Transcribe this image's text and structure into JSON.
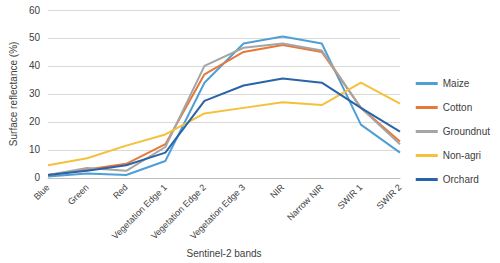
{
  "chart_data": {
    "type": "line",
    "x_label": "Sentinel-2 bands",
    "y_label": "Surface reflectance (%)",
    "categories": [
      "Blue",
      "Green",
      "Red",
      "Vegetation Edge 1",
      "Vegetation Edge 2",
      "Vegetation Edge 3",
      "NIR",
      "Narrow NIR",
      "SWIR 1",
      "SWIR 2"
    ],
    "series": [
      {
        "name": "Maize",
        "color": "#4e9fd6",
        "values": [
          0.5,
          1.5,
          1,
          6,
          34,
          48,
          50.5,
          48,
          19,
          9
        ]
      },
      {
        "name": "Cotton",
        "color": "#e8773a",
        "values": [
          1,
          3,
          5,
          12,
          37,
          45,
          47.5,
          45,
          25,
          13
        ]
      },
      {
        "name": "Groundnut",
        "color": "#a5a5a5",
        "values": [
          1,
          3.5,
          2.5,
          11,
          40,
          46.5,
          48,
          45.5,
          25,
          12
        ]
      },
      {
        "name": "Non-agri",
        "color": "#f5c03a",
        "values": [
          4.5,
          7,
          11.5,
          15.5,
          23,
          25,
          27,
          26,
          34,
          26.5
        ]
      },
      {
        "name": "Orchard",
        "color": "#2a64a8",
        "values": [
          1,
          2.5,
          4.5,
          9,
          27.5,
          33,
          35.5,
          34,
          25,
          16.5
        ]
      }
    ],
    "ylim": [
      0,
      60
    ],
    "yticks": [
      0,
      10,
      20,
      30,
      40,
      50,
      60
    ],
    "grid": true,
    "legend": "right"
  }
}
